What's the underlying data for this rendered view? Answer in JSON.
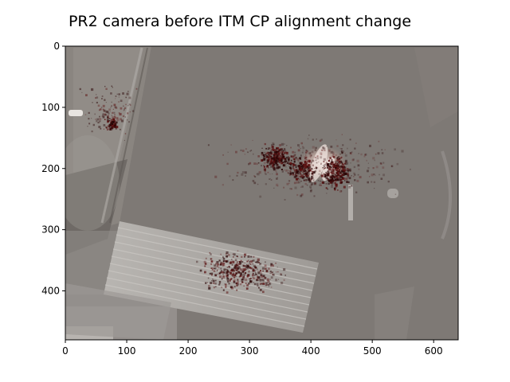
{
  "figure": {
    "title": "PR2 camera before ITM CP alignment change"
  },
  "image_axes": {
    "x_range": [
      0,
      640
    ],
    "y_range": [
      0,
      480
    ],
    "y_inverted": true,
    "x_ticks": [
      0,
      100,
      200,
      300,
      400,
      500,
      600
    ],
    "y_ticks": [
      0,
      100,
      200,
      300,
      400
    ],
    "colors": {
      "background": "#7d7874",
      "speckle": "#5a0f0f",
      "speckle_dark": "#2a0606",
      "highlight": "#ead6cf",
      "bright_panel": "#a9a6a2"
    }
  }
}
